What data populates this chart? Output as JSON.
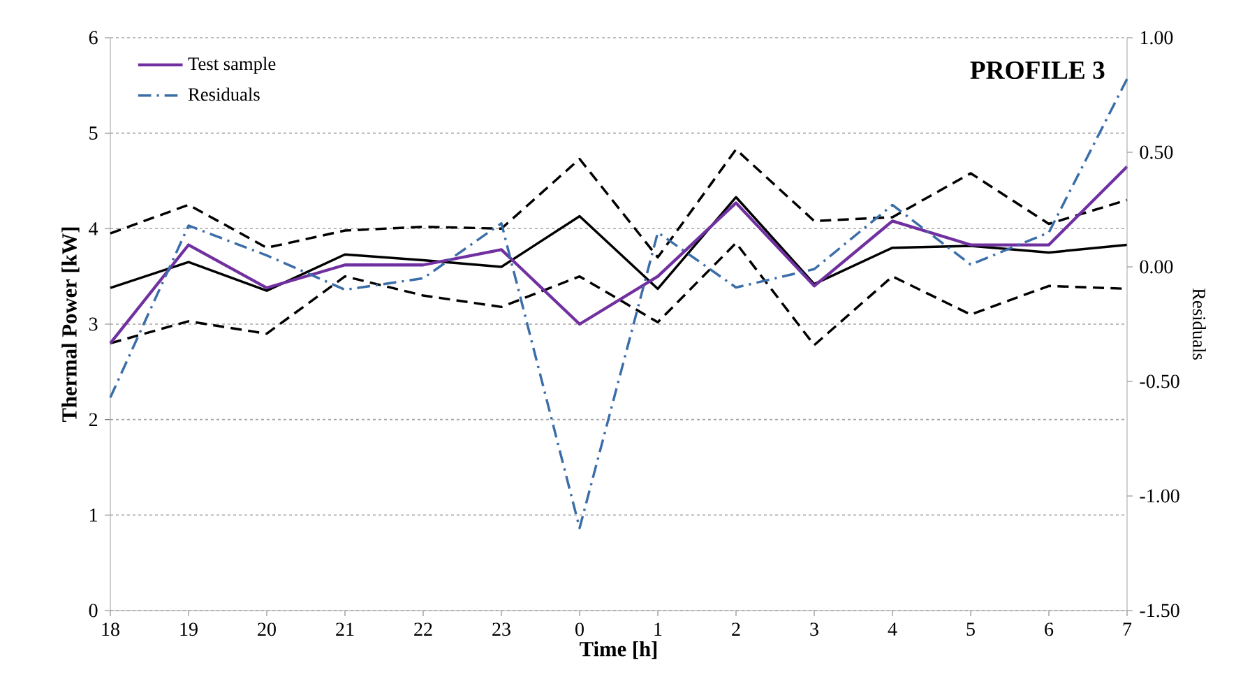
{
  "chart_data": {
    "type": "line",
    "title": "PROFILE 3",
    "xlabel": "Time [h]",
    "ylabel": "Thermal Power [kW]",
    "y2label": "Residuals",
    "categories": [
      "18",
      "19",
      "20",
      "21",
      "22",
      "23",
      "0",
      "1",
      "2",
      "3",
      "4",
      "5",
      "6",
      "7"
    ],
    "series": [
      {
        "color": "#000000",
        "line_style": "solid",
        "values": [
          3.38,
          3.65,
          3.35,
          3.73,
          3.67,
          3.6,
          4.13,
          3.37,
          4.33,
          3.42,
          3.8,
          3.82,
          3.75,
          3.83
        ]
      },
      {
        "color": "#000000",
        "line_style": "dashed",
        "values": [
          3.95,
          4.25,
          3.8,
          3.98,
          4.02,
          4.0,
          4.73,
          3.7,
          4.83,
          4.08,
          4.12,
          4.58,
          4.05,
          4.3
        ]
      },
      {
        "color": "#000000",
        "line_style": "dashed",
        "values": [
          2.8,
          3.03,
          2.9,
          3.5,
          3.3,
          3.18,
          3.5,
          3.02,
          3.85,
          2.78,
          3.5,
          3.1,
          3.4,
          3.37
        ]
      },
      {
        "name": "Test sample",
        "color": "#7030a0",
        "line_style": "solid",
        "values": [
          2.8,
          3.83,
          3.38,
          3.62,
          3.62,
          3.78,
          3.0,
          3.5,
          4.27,
          3.4,
          4.08,
          3.83,
          3.83,
          4.65
        ]
      },
      {
        "name": "Residuals",
        "color": "#3b6ea8",
        "line_style": "dashdot",
        "axis": "y2",
        "values": [
          -0.57,
          0.18,
          0.05,
          -0.1,
          -0.05,
          0.19,
          -1.14,
          0.15,
          -0.09,
          -0.01,
          0.27,
          0.01,
          0.15,
          0.82
        ]
      }
    ],
    "ylim": [
      0,
      6
    ],
    "yticks": [
      0,
      1,
      2,
      3,
      4,
      5,
      6
    ],
    "y2lim": [
      -1.5,
      1.0
    ],
    "y2ticks": [
      {
        "value": -1.5,
        "label": "-1.50"
      },
      {
        "value": -1.0,
        "label": "-1.00"
      },
      {
        "value": -0.5,
        "label": "-0.50"
      },
      {
        "value": 0,
        "label": "0.00"
      },
      {
        "value": 0.5,
        "label": "0.50"
      },
      {
        "value": 1.0,
        "label": "1.00"
      }
    ],
    "grid": "y",
    "legend": "top left"
  }
}
